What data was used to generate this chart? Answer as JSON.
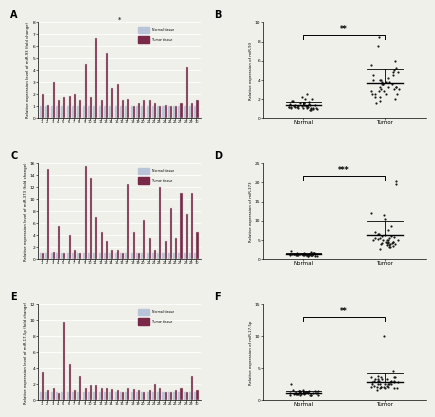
{
  "panel_A": {
    "title": "*",
    "ylabel": "Relative expression level of miR-93 (fold change)",
    "ylim": [
      0,
      8
    ],
    "yticks": [
      0,
      1,
      2,
      3,
      4,
      5,
      6,
      7,
      8
    ],
    "normal_vals": [
      1,
      1,
      1,
      1,
      1,
      1,
      1,
      1,
      1,
      1,
      1,
      1,
      1,
      1,
      1,
      1,
      1,
      1,
      1,
      1,
      1,
      1,
      1,
      1,
      1,
      1,
      1,
      1,
      1,
      1
    ],
    "tumor_vals": [
      2.0,
      1.1,
      3.0,
      1.5,
      1.7,
      1.8,
      2.0,
      1.5,
      4.5,
      1.7,
      6.7,
      1.5,
      5.4,
      2.5,
      2.8,
      1.5,
      1.6,
      1.0,
      1.2,
      1.5,
      1.5,
      1.2,
      1.0,
      1.1,
      1.0,
      1.0,
      1.2,
      4.3,
      1.2,
      1.5
    ]
  },
  "panel_B": {
    "ylabel": "Relative expression of miR-93",
    "ylim": [
      0,
      10
    ],
    "yticks": [
      0,
      2,
      4,
      6,
      8,
      10
    ],
    "normal_dots": [
      1.0,
      1.1,
      1.2,
      0.9,
      1.0,
      1.1,
      1.3,
      0.8,
      1.2,
      1.0,
      1.4,
      0.9,
      1.1,
      1.5,
      1.0,
      1.2,
      0.8,
      1.1,
      1.0,
      1.3,
      2.0,
      1.8,
      1.5,
      1.6,
      1.2,
      2.2,
      1.0,
      1.3,
      1.1,
      1.2,
      2.0,
      1.5,
      1.3,
      1.0,
      1.1,
      1.2,
      1.8,
      0.9,
      1.4,
      2.5
    ],
    "tumor_dots": [
      2.5,
      3.0,
      1.5,
      2.0,
      4.0,
      3.5,
      2.8,
      3.2,
      1.8,
      2.5,
      3.8,
      4.5,
      5.0,
      2.2,
      3.5,
      4.8,
      3.0,
      2.8,
      6.0,
      7.5,
      3.2,
      2.5,
      3.8,
      4.2,
      5.5,
      3.0,
      4.0,
      8.5,
      3.2,
      4.5,
      2.8,
      3.5,
      2.2,
      3.8,
      4.0,
      2.5,
      3.2,
      4.8,
      5.2,
      3.5
    ],
    "sig": "**"
  },
  "panel_C": {
    "ylabel": "Relative expression level of miR-373 (fold change)",
    "ylim": [
      0,
      16
    ],
    "yticks": [
      0,
      2,
      4,
      6,
      8,
      10,
      12,
      14,
      16
    ],
    "normal_vals": [
      1,
      1,
      1,
      1,
      1,
      1,
      1,
      1,
      1,
      1,
      1,
      1,
      1,
      1,
      1,
      1,
      1,
      1,
      1,
      1,
      1,
      1,
      1,
      1,
      1,
      1,
      1,
      1,
      1,
      1
    ],
    "tumor_vals": [
      1.0,
      15.0,
      1.2,
      5.5,
      1.0,
      4.0,
      1.5,
      1.0,
      15.5,
      13.5,
      7.0,
      4.5,
      3.0,
      1.5,
      1.5,
      1.0,
      12.5,
      4.5,
      1.0,
      6.5,
      3.5,
      1.5,
      12.0,
      3.0,
      8.5,
      3.5,
      11.0,
      7.5,
      11.0,
      4.5
    ]
  },
  "panel_D": {
    "ylabel": "Relative expression of miR-373",
    "ylim": [
      0,
      25
    ],
    "yticks": [
      0,
      5,
      10,
      15,
      20,
      25
    ],
    "normal_dots": [
      1.0,
      1.1,
      0.8,
      1.2,
      0.9,
      1.0,
      1.3,
      1.5,
      0.8,
      1.1,
      1.0,
      1.2,
      0.9,
      1.4,
      1.0,
      1.2,
      1.1,
      0.9,
      1.3,
      1.0,
      1.5,
      0.8,
      1.1,
      1.3,
      1.0,
      1.2,
      0.9,
      1.4,
      1.1,
      1.0,
      1.3,
      0.8,
      1.5,
      2.0,
      1.8,
      1.2,
      1.0,
      0.9,
      1.1,
      1.3
    ],
    "tumor_dots": [
      3.0,
      5.0,
      2.5,
      4.0,
      6.5,
      3.5,
      7.0,
      4.5,
      3.8,
      5.5,
      4.0,
      6.0,
      3.2,
      5.8,
      4.5,
      7.5,
      3.0,
      5.5,
      4.8,
      6.2,
      10.5,
      12.0,
      8.5,
      5.0,
      4.5,
      11.5,
      3.8,
      6.5,
      4.2,
      5.0,
      3.5,
      4.8,
      19.5,
      20.5,
      5.5,
      6.0,
      4.5,
      3.8,
      5.2,
      4.0
    ],
    "sig": "***"
  },
  "panel_E": {
    "ylabel": "Relative expression level of miR-17-5p (fold change)",
    "ylim": [
      0,
      12
    ],
    "yticks": [
      0,
      2,
      4,
      6,
      8,
      10,
      12
    ],
    "normal_vals": [
      1,
      1,
      1,
      1,
      1,
      1,
      1,
      1,
      1,
      1,
      1,
      1,
      1,
      1,
      1,
      1,
      1,
      1,
      1,
      1,
      1,
      1,
      1,
      1,
      1,
      1,
      1,
      1,
      1,
      1
    ],
    "tumor_vals": [
      3.5,
      1.2,
      1.5,
      0.8,
      9.8,
      4.5,
      1.2,
      3.0,
      1.5,
      1.8,
      1.8,
      1.5,
      1.5,
      1.3,
      1.2,
      1.0,
      1.5,
      1.3,
      1.2,
      1.0,
      1.2,
      2.0,
      1.5,
      1.0,
      1.0,
      1.2,
      1.5,
      1.0,
      3.0,
      1.2
    ]
  },
  "panel_F": {
    "ylabel": "Relative expression of miR-17-5p",
    "ylim": [
      0,
      15
    ],
    "yticks": [
      0,
      5,
      10,
      15
    ],
    "normal_dots": [
      1.0,
      0.8,
      1.2,
      0.9,
      1.1,
      1.3,
      0.8,
      1.0,
      1.2,
      0.9,
      1.5,
      1.0,
      1.2,
      0.8,
      1.1,
      2.5,
      1.0,
      1.3,
      0.9,
      1.1,
      1.2,
      0.8,
      1.4,
      1.0,
      1.3,
      0.9,
      1.1,
      1.2,
      0.8,
      1.5,
      1.0,
      1.2,
      0.9,
      1.1,
      1.3,
      0.8,
      1.0,
      1.2,
      0.9,
      1.4
    ],
    "tumor_dots": [
      2.0,
      3.0,
      1.5,
      2.5,
      3.5,
      2.2,
      1.8,
      2.8,
      3.2,
      2.0,
      4.5,
      3.8,
      2.5,
      3.0,
      1.8,
      2.5,
      3.5,
      2.0,
      2.8,
      3.2,
      10.0,
      2.5,
      3.0,
      2.0,
      3.5,
      2.8,
      1.8,
      3.2,
      2.5,
      2.0,
      3.0,
      2.5,
      1.8,
      2.2,
      3.5,
      2.8,
      3.0,
      2.5,
      3.2,
      2.0
    ],
    "sig": "**"
  },
  "bg_color": "#f0f0eb",
  "bar_normal_color": "#b8c4d8",
  "bar_tumor_color": "#7a2848",
  "dot_color": "#1a1a1a",
  "legend_normal": "Normal tissue",
  "legend_tumor": "Tumor tissue",
  "panel_A_title": "*"
}
